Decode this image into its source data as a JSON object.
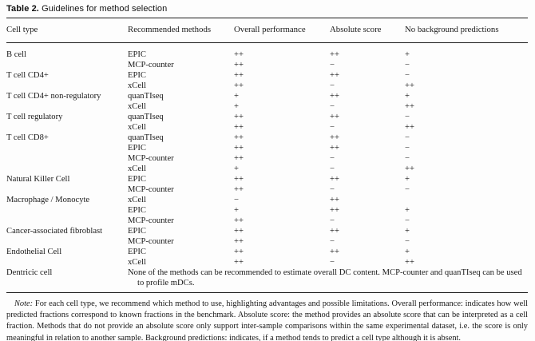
{
  "title": {
    "label": "Table 2.",
    "text": "Guidelines for method selection"
  },
  "table": {
    "columns": [
      "Cell type",
      "Recommended methods",
      "Overall performance",
      "Absolute score",
      "No background predictions"
    ],
    "rows": [
      {
        "cell_type": "B cell",
        "method": "EPIC",
        "overall": "++",
        "absolute": "++",
        "background": "+"
      },
      {
        "cell_type": "",
        "method": "MCP-counter",
        "overall": "++",
        "absolute": "−",
        "background": "−"
      },
      {
        "cell_type": "T cell CD4+",
        "method": "EPIC",
        "overall": "++",
        "absolute": "++",
        "background": "−"
      },
      {
        "cell_type": "",
        "method": "xCell",
        "overall": "++",
        "absolute": "−",
        "background": "++"
      },
      {
        "cell_type": "T cell CD4+ non-regulatory",
        "method": "quanTIseq",
        "overall": "+",
        "absolute": "++",
        "background": "+"
      },
      {
        "cell_type": "",
        "method": "xCell",
        "overall": "+",
        "absolute": "−",
        "background": "++"
      },
      {
        "cell_type": "T cell regulatory",
        "method": "quanTIseq",
        "overall": "++",
        "absolute": "++",
        "background": "−"
      },
      {
        "cell_type": "",
        "method": "xCell",
        "overall": "++",
        "absolute": "−",
        "background": "++"
      },
      {
        "cell_type": "T cell CD8+",
        "method": "quanTIseq",
        "overall": "++",
        "absolute": "++",
        "background": "−"
      },
      {
        "cell_type": "",
        "method": "EPIC",
        "overall": "++",
        "absolute": "++",
        "background": "−"
      },
      {
        "cell_type": "",
        "method": "MCP-counter",
        "overall": "++",
        "absolute": "−",
        "background": "−"
      },
      {
        "cell_type": "",
        "method": "xCell",
        "overall": "+",
        "absolute": "−",
        "background": "++"
      },
      {
        "cell_type": "Natural Killer Cell",
        "method": "EPIC",
        "overall": "++",
        "absolute": "++",
        "background": "+"
      },
      {
        "cell_type": "",
        "method": "MCP-counter",
        "overall": "++",
        "absolute": "−",
        "background": "−"
      },
      {
        "cell_type": "Macrophage / Monocyte",
        "method": "xCell",
        "overall": "−",
        "absolute": "++",
        "background": ""
      },
      {
        "cell_type": "",
        "method": "EPIC",
        "overall": "+",
        "absolute": "++",
        "background": "+"
      },
      {
        "cell_type": "",
        "method": "MCP-counter",
        "overall": "++",
        "absolute": "−",
        "background": "−"
      },
      {
        "cell_type": "Cancer-associated fibroblast",
        "method": "EPIC",
        "overall": "++",
        "absolute": "++",
        "background": "+"
      },
      {
        "cell_type": "",
        "method": "MCP-counter",
        "overall": "++",
        "absolute": "−",
        "background": "−"
      },
      {
        "cell_type": "Endothelial Cell",
        "method": "EPIC",
        "overall": "++",
        "absolute": "++",
        "background": "+"
      },
      {
        "cell_type": "",
        "method": "xCell",
        "overall": "++",
        "absolute": "−",
        "background": "++"
      },
      {
        "cell_type": "Dentricic cell",
        "span_text": "None of the methods can be recommended to estimate overall DC content. MCP-counter and quanTIseq can be used to profile mDCs."
      }
    ]
  },
  "note": {
    "label": "Note:",
    "text": "For each cell type, we recommend which method to use, highlighting advantages and possible limitations. Overall performance: indicates how well predicted fractions correspond to known fractions in the benchmark. Absolute score: the method provides an absolute score that can be interpreted as a cell fraction. Methods that do not provide an absolute score only support inter-sample comparisons within the same experimental dataset, i.e. the score is only meaningful in relation to another sample. Background predictions: indicates, if a method tends to predict a cell type although it is absent."
  }
}
